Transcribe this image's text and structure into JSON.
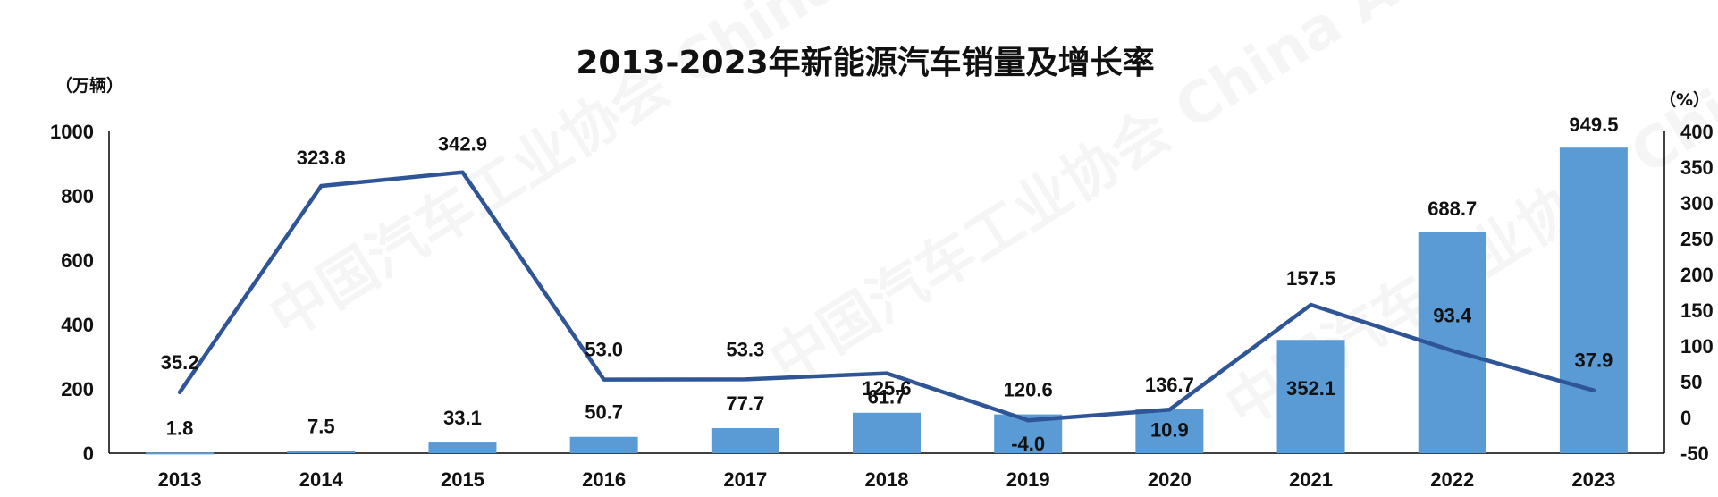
{
  "chart_data": {
    "type": "bar+line",
    "title": "2013-2023年新能源汽车销量及增长率",
    "left_unit": "（万辆）",
    "right_unit": "（%）",
    "categories": [
      "2013",
      "2014",
      "2015",
      "2016",
      "2017",
      "2018",
      "2019",
      "2020",
      "2021",
      "2022",
      "2023"
    ],
    "bar_values": [
      1.8,
      7.5,
      33.1,
      50.7,
      77.7,
      125.6,
      120.6,
      136.7,
      352.1,
      688.7,
      949.5
    ],
    "bar_labels": [
      "1.8",
      "7.5",
      "33.1",
      "50.7",
      "77.7",
      "125.6",
      "120.6",
      "136.7",
      "352.1",
      "688.7",
      "949.5"
    ],
    "line_values": [
      35.2,
      323.8,
      342.9,
      53.0,
      53.3,
      61.7,
      -4.0,
      10.9,
      157.5,
      93.4,
      37.9
    ],
    "line_labels": [
      "35.2",
      "323.8",
      "342.9",
      "53.0",
      "53.3",
      "61.7",
      "-4.0",
      "10.9",
      "157.5",
      "93.4",
      "37.9"
    ],
    "y_left": {
      "min": 0,
      "max": 1000,
      "ticks": [
        "0",
        "200",
        "400",
        "600",
        "800",
        "1000"
      ]
    },
    "y_right": {
      "min": -50,
      "max": 400,
      "ticks": [
        "-50",
        "0",
        "50",
        "100",
        "150",
        "200",
        "250",
        "300",
        "350",
        "400"
      ]
    },
    "bar_color": "#5b9bd5",
    "line_color": "#2f5597",
    "watermark": "中国汽车工业协会 China Association of Automobile Manufacturers"
  }
}
